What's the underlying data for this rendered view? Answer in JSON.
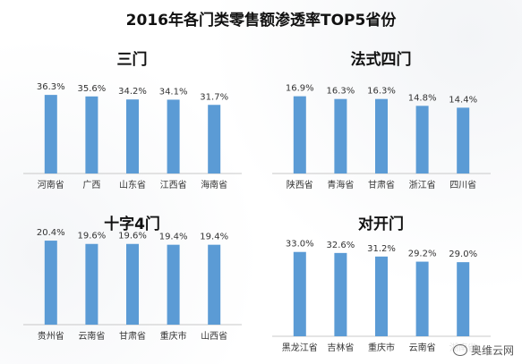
{
  "title": "2016年各门类零售额渗透率TOP5省份",
  "watermark": "奥维云网",
  "colors": {
    "bar": "#5b9bd5",
    "axis": "#c8c8c8",
    "text": "#333333"
  },
  "chart_data": [
    {
      "type": "bar",
      "title": "三门",
      "categories": [
        "河南省",
        "广西",
        "山东省",
        "江西省",
        "海南省"
      ],
      "values": [
        36.3,
        35.6,
        34.2,
        34.1,
        31.7
      ],
      "value_labels": [
        "36.3%",
        "35.6%",
        "34.2%",
        "34.1%",
        "31.7%"
      ],
      "grid": false,
      "legend": "none"
    },
    {
      "type": "bar",
      "title": "法式四门",
      "categories": [
        "陕西省",
        "青海省",
        "甘肃省",
        "浙江省",
        "四川省"
      ],
      "values": [
        16.9,
        16.3,
        16.3,
        14.8,
        14.4
      ],
      "value_labels": [
        "16.9%",
        "16.3%",
        "16.3%",
        "14.8%",
        "14.4%"
      ],
      "grid": false,
      "legend": "none"
    },
    {
      "type": "bar",
      "title": "十字4门",
      "categories": [
        "贵州省",
        "云南省",
        "甘肃省",
        "重庆市",
        "山西省"
      ],
      "values": [
        20.4,
        19.6,
        19.6,
        19.4,
        19.4
      ],
      "value_labels": [
        "20.4%",
        "19.6%",
        "19.6%",
        "19.4%",
        "19.4%"
      ],
      "grid": false,
      "legend": "none"
    },
    {
      "type": "bar",
      "title": "对开门",
      "categories": [
        "黑龙江省",
        "吉林省",
        "重庆市",
        "云南省",
        "湖南省"
      ],
      "values": [
        33.0,
        32.6,
        31.2,
        29.2,
        29.0
      ],
      "value_labels": [
        "33.0%",
        "32.6%",
        "31.2%",
        "29.2%",
        "29.0%"
      ],
      "grid": false,
      "legend": "none"
    }
  ]
}
